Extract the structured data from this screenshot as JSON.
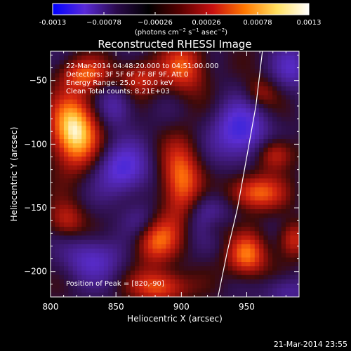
{
  "chart_data": {
    "type": "heatmap",
    "title": "Reconstructed RHESSI Image",
    "xlabel": "Heliocentric X (arcsec)",
    "ylabel": "Heliocentric Y (arcsec)",
    "xlim": [
      800,
      990
    ],
    "ylim": [
      -220,
      -27
    ],
    "x_ticks": [
      800,
      850,
      900,
      950
    ],
    "y_ticks": [
      -200,
      -150,
      -100,
      -50
    ],
    "colorbar": {
      "range": [
        -0.0013,
        0.0013
      ],
      "tick_values": [
        -0.0013,
        -0.00078,
        -0.00026,
        0.00026,
        0.00078,
        0.0013
      ],
      "tick_labels": [
        "-0.0013",
        "−0.00078",
        "−0.00026",
        "0.00026",
        "0.00078",
        "0.0013"
      ],
      "units_text": "(photons cm",
      "units_exp1": "−2",
      "units_mid": " s",
      "units_exp2": "−1",
      "units_end": " asec",
      "units_exp3": "−2",
      "units_close": ")",
      "colors": [
        "#0000ff",
        "#5a2ad8",
        "#2a0a4a",
        "#000000",
        "#5a0000",
        "#c81010",
        "#ff7800",
        "#ffe060",
        "#ffffff"
      ]
    },
    "annotations": [
      "22-Mar-2014 04:48:20.000 to 04:51:00.000",
      "Detectors: 3F 5F 6F 7F 8F 9F, Att 0",
      "Energy Range: 25.0 - 50.0 keV",
      "Clean    Total counts: 8.21E+03"
    ],
    "peak_label": "Position of Peak = [820,-90]",
    "peak": [
      820,
      -90
    ],
    "sources": [
      {
        "x": 818,
        "y": -90,
        "sx": 13,
        "sy": 20,
        "a": 1.05
      },
      {
        "x": 826,
        "y": -45,
        "sx": 14,
        "sy": 9,
        "a": 0.55
      },
      {
        "x": 868,
        "y": -48,
        "sx": 12,
        "sy": 10,
        "a": 0.5
      },
      {
        "x": 903,
        "y": -40,
        "sx": 12,
        "sy": 14,
        "a": 0.6
      },
      {
        "x": 900,
        "y": -130,
        "sx": 11,
        "sy": 22,
        "a": 0.75
      },
      {
        "x": 880,
        "y": -175,
        "sx": 12,
        "sy": 14,
        "a": 0.65
      },
      {
        "x": 956,
        "y": -138,
        "sx": 15,
        "sy": 10,
        "a": 0.7
      },
      {
        "x": 972,
        "y": -108,
        "sx": 10,
        "sy": 9,
        "a": 0.55
      },
      {
        "x": 950,
        "y": -188,
        "sx": 11,
        "sy": 12,
        "a": 0.7
      },
      {
        "x": 960,
        "y": -60,
        "sx": 9,
        "sy": 9,
        "a": 0.35
      },
      {
        "x": 812,
        "y": -160,
        "sx": 10,
        "sy": 10,
        "a": 0.45
      },
      {
        "x": 884,
        "y": -212,
        "sx": 15,
        "sy": 9,
        "a": 0.65
      },
      {
        "x": 985,
        "y": -175,
        "sx": 8,
        "sy": 10,
        "a": 0.5
      },
      {
        "x": 925,
        "y": -165,
        "sx": 8,
        "sy": 8,
        "a": 0.3
      },
      {
        "x": 945,
        "y": -90,
        "sx": 14,
        "sy": 16,
        "a": -0.75
      },
      {
        "x": 855,
        "y": -120,
        "sx": 14,
        "sy": 14,
        "a": -0.65
      },
      {
        "x": 832,
        "y": -190,
        "sx": 16,
        "sy": 12,
        "a": -0.5
      },
      {
        "x": 920,
        "y": -155,
        "sx": 12,
        "sy": 14,
        "a": -0.45
      },
      {
        "x": 850,
        "y": -70,
        "sx": 10,
        "sy": 12,
        "a": -0.4
      },
      {
        "x": 985,
        "y": -40,
        "sx": 10,
        "sy": 12,
        "a": -0.45
      },
      {
        "x": 980,
        "y": -215,
        "sx": 12,
        "sy": 8,
        "a": -0.35
      },
      {
        "x": 870,
        "y": -160,
        "sx": 10,
        "sy": 10,
        "a": -0.35
      }
    ],
    "limb": [
      [
        962,
        -27
      ],
      [
        957,
        -70
      ],
      [
        950,
        -110
      ],
      [
        943,
        -150
      ],
      [
        935,
        -185
      ],
      [
        928,
        -220
      ]
    ]
  },
  "footer": {
    "timestamp": "21-Mar-2014 23:55"
  }
}
